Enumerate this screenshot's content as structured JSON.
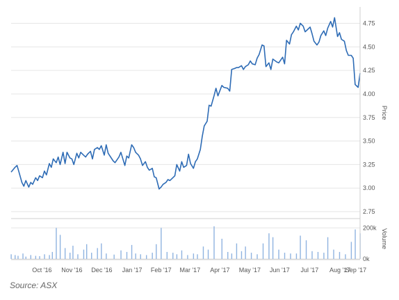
{
  "source_text": "Source: ASX",
  "colors": {
    "line": "#2d6bb5",
    "volume": "#8fb3e0",
    "grid": "#e6e6e6",
    "frame": "#cfcfcf"
  },
  "chart_data": [
    {
      "type": "line",
      "title": "",
      "xlabel": "",
      "ylabel": "Price",
      "ylim": [
        2.75,
        4.85
      ],
      "y_ticks": [
        "2.75",
        "3.00",
        "3.25",
        "3.50",
        "3.75",
        "4.00",
        "4.25",
        "4.50",
        "4.75"
      ],
      "x_ticks": [
        "Oct '16",
        "Nov '16",
        "Dec '16",
        "Jan '17",
        "Feb '17",
        "Mar '17",
        "Apr '17",
        "May '17",
        "Jun '17",
        "Jul '17",
        "Aug '17",
        "Sep '17"
      ],
      "grid": true,
      "x_range": [
        "2016-09-15",
        "2017-09-06"
      ],
      "series": [
        {
          "x": [
            "2016-09-15",
            "2016-09-19",
            "2016-09-21",
            "2016-09-23",
            "2016-09-26",
            "2016-09-28",
            "2016-09-30",
            "2016-10-03",
            "2016-10-05",
            "2016-10-07",
            "2016-10-10",
            "2016-10-12",
            "2016-10-14",
            "2016-10-17",
            "2016-10-19",
            "2016-10-21",
            "2016-10-24",
            "2016-10-26",
            "2016-10-28",
            "2016-10-31",
            "2016-11-02",
            "2016-11-04",
            "2016-11-07",
            "2016-11-09",
            "2016-11-11",
            "2016-11-14",
            "2016-11-16",
            "2016-11-18",
            "2016-11-21",
            "2016-11-23",
            "2016-11-25",
            "2016-11-28",
            "2016-11-30",
            "2016-12-02",
            "2016-12-05",
            "2016-12-07",
            "2016-12-09",
            "2016-12-12",
            "2016-12-14",
            "2016-12-16",
            "2016-12-19",
            "2016-12-21",
            "2016-12-23",
            "2016-12-28",
            "2016-12-30",
            "2017-01-03",
            "2017-01-05",
            "2017-01-09",
            "2017-01-11",
            "2017-01-13",
            "2017-01-16",
            "2017-01-18",
            "2017-01-20",
            "2017-01-23",
            "2017-01-25",
            "2017-01-27",
            "2017-01-30",
            "2017-02-01",
            "2017-02-03",
            "2017-02-06",
            "2017-02-08",
            "2017-02-10",
            "2017-02-13",
            "2017-02-15",
            "2017-02-17",
            "2017-02-20",
            "2017-02-22",
            "2017-02-24",
            "2017-02-27",
            "2017-03-01",
            "2017-03-03",
            "2017-03-06",
            "2017-03-08",
            "2017-03-10",
            "2017-03-13",
            "2017-03-15",
            "2017-03-17",
            "2017-03-20",
            "2017-03-22",
            "2017-03-24",
            "2017-03-27",
            "2017-03-29",
            "2017-03-31",
            "2017-04-03",
            "2017-04-05",
            "2017-04-07",
            "2017-04-10",
            "2017-04-12",
            "2017-04-14",
            "2017-04-18",
            "2017-04-20",
            "2017-04-24",
            "2017-04-26",
            "2017-04-28",
            "2017-05-01",
            "2017-05-03",
            "2017-05-05",
            "2017-05-08",
            "2017-05-10",
            "2017-05-12",
            "2017-05-15",
            "2017-05-17",
            "2017-05-19",
            "2017-05-22",
            "2017-05-24",
            "2017-05-26",
            "2017-05-29",
            "2017-05-31",
            "2017-06-02",
            "2017-06-05",
            "2017-06-07",
            "2017-06-09",
            "2017-06-13",
            "2017-06-15",
            "2017-06-19",
            "2017-06-21",
            "2017-06-23",
            "2017-06-26",
            "2017-06-28",
            "2017-06-30",
            "2017-07-03",
            "2017-07-05",
            "2017-07-07",
            "2017-07-10",
            "2017-07-12",
            "2017-07-14",
            "2017-07-17",
            "2017-07-19",
            "2017-07-21",
            "2017-07-24",
            "2017-07-26",
            "2017-07-28",
            "2017-07-31",
            "2017-08-02",
            "2017-08-04",
            "2017-08-07",
            "2017-08-09",
            "2017-08-11",
            "2017-08-14",
            "2017-08-16",
            "2017-08-18",
            "2017-08-21",
            "2017-08-23",
            "2017-08-25",
            "2017-08-28",
            "2017-08-30",
            "2017-09-01",
            "2017-09-04",
            "2017-09-06"
          ],
          "values": [
            3.17,
            3.22,
            3.24,
            3.17,
            3.06,
            3.02,
            3.08,
            3.01,
            3.06,
            3.04,
            3.11,
            3.08,
            3.13,
            3.11,
            3.18,
            3.14,
            3.26,
            3.22,
            3.31,
            3.27,
            3.33,
            3.25,
            3.38,
            3.26,
            3.38,
            3.32,
            3.31,
            3.25,
            3.37,
            3.32,
            3.38,
            3.35,
            3.33,
            3.36,
            3.39,
            3.31,
            3.41,
            3.43,
            3.41,
            3.45,
            3.35,
            3.46,
            3.37,
            3.29,
            3.27,
            3.33,
            3.38,
            3.24,
            3.34,
            3.32,
            3.46,
            3.43,
            3.38,
            3.35,
            3.31,
            3.24,
            3.28,
            3.22,
            3.19,
            3.21,
            3.12,
            3.11,
            2.99,
            3.01,
            3.04,
            3.06,
            3.09,
            3.08,
            3.11,
            3.13,
            3.25,
            3.18,
            3.28,
            3.22,
            3.24,
            3.36,
            3.26,
            3.21,
            3.28,
            3.31,
            3.41,
            3.55,
            3.66,
            3.71,
            3.88,
            3.87,
            3.98,
            4.06,
            3.98,
            4.09,
            4.07,
            4.06,
            4.03,
            4.26,
            4.27,
            4.28,
            4.28,
            4.3,
            4.26,
            4.29,
            4.31,
            4.35,
            4.32,
            4.31,
            4.38,
            4.42,
            4.52,
            4.51,
            4.29,
            4.33,
            4.26,
            4.37,
            4.34,
            4.33,
            4.39,
            4.32,
            4.57,
            4.53,
            4.63,
            4.66,
            4.72,
            4.68,
            4.75,
            4.72,
            4.66,
            4.68,
            4.71,
            4.64,
            4.56,
            4.52,
            4.55,
            4.62,
            4.67,
            4.62,
            4.7,
            4.77,
            4.71,
            4.81,
            4.61,
            4.65,
            4.58,
            4.56,
            4.46,
            4.41,
            4.41,
            4.38,
            4.1,
            4.07,
            4.22
          ]
        }
      ]
    },
    {
      "type": "bar",
      "title": "",
      "ylabel": "Volume",
      "ylim": [
        0,
        260000
      ],
      "y_ticks": [
        "0k",
        "200k"
      ],
      "x_range": [
        "2016-09-15",
        "2017-09-06"
      ],
      "grid": true,
      "series": [
        {
          "x": [
            "2016-09-15",
            "2016-09-19",
            "2016-09-22",
            "2016-09-27",
            "2016-09-30",
            "2016-10-05",
            "2016-10-10",
            "2016-10-14",
            "2016-10-19",
            "2016-10-24",
            "2016-10-27",
            "2016-10-31",
            "2016-11-04",
            "2016-11-09",
            "2016-11-14",
            "2016-11-17",
            "2016-11-22",
            "2016-11-28",
            "2016-12-01",
            "2016-12-06",
            "2016-12-12",
            "2016-12-16",
            "2016-12-21",
            "2016-12-29",
            "2017-01-05",
            "2017-01-11",
            "2017-01-16",
            "2017-01-20",
            "2017-01-25",
            "2017-01-31",
            "2017-02-06",
            "2017-02-10",
            "2017-02-15",
            "2017-02-21",
            "2017-02-27",
            "2017-03-03",
            "2017-03-08",
            "2017-03-14",
            "2017-03-20",
            "2017-03-24",
            "2017-03-30",
            "2017-04-04",
            "2017-04-10",
            "2017-04-18",
            "2017-04-24",
            "2017-04-28",
            "2017-05-03",
            "2017-05-08",
            "2017-05-12",
            "2017-05-18",
            "2017-05-24",
            "2017-05-30",
            "2017-06-05",
            "2017-06-09",
            "2017-06-15",
            "2017-06-21",
            "2017-06-27",
            "2017-07-03",
            "2017-07-07",
            "2017-07-13",
            "2017-07-19",
            "2017-07-25",
            "2017-07-31",
            "2017-08-04",
            "2017-08-10",
            "2017-08-16",
            "2017-08-22",
            "2017-08-28",
            "2017-09-01",
            "2017-09-06"
          ],
          "values": [
            30000,
            25000,
            20000,
            35000,
            15000,
            25000,
            20000,
            18000,
            30000,
            25000,
            45000,
            200000,
            155000,
            70000,
            40000,
            85000,
            30000,
            60000,
            95000,
            40000,
            70000,
            100000,
            35000,
            28000,
            55000,
            45000,
            90000,
            35000,
            30000,
            25000,
            40000,
            95000,
            200000,
            45000,
            40000,
            30000,
            55000,
            25000,
            35000,
            30000,
            80000,
            60000,
            210000,
            130000,
            45000,
            35000,
            100000,
            50000,
            80000,
            40000,
            30000,
            100000,
            165000,
            140000,
            60000,
            40000,
            35000,
            35000,
            150000,
            120000,
            50000,
            45000,
            40000,
            140000,
            60000,
            45000,
            30000,
            110000,
            190000,
            165000
          ]
        }
      ]
    }
  ]
}
